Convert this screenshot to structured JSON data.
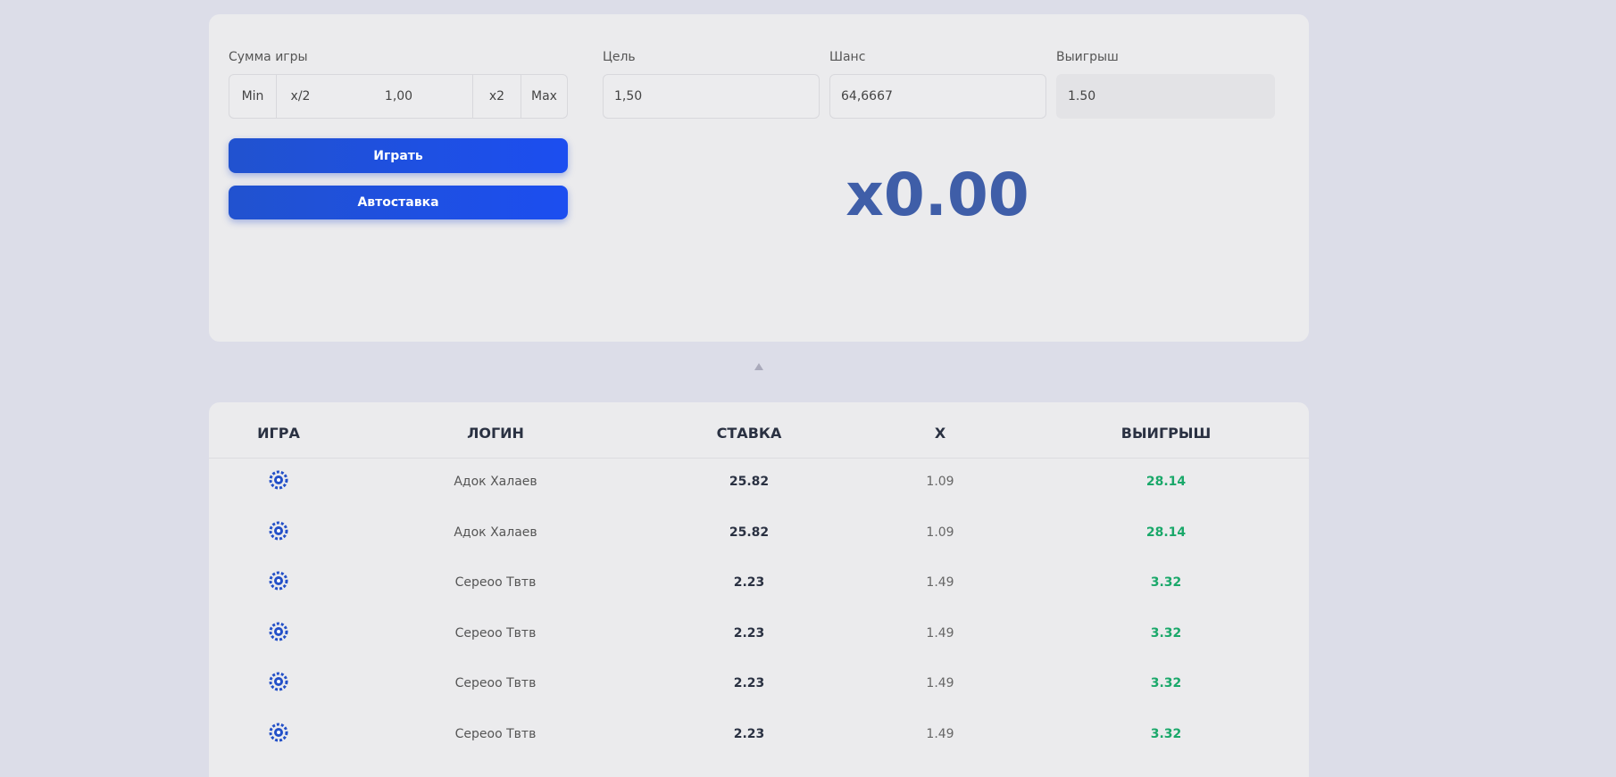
{
  "form": {
    "bet_label": "Сумма игры",
    "bet_buttons": [
      "Min",
      "x/2",
      "x2",
      "Max"
    ],
    "bet_value": "1,00",
    "target_label": "Цель",
    "target_value": "1,50",
    "chance_label": "Шанс",
    "chance_value": "64,6667",
    "payout_label": "Выигрыш",
    "payout_value": "1.50",
    "play_button": "Играть",
    "auto_button": "Автоставка",
    "multiplier": "x0.00"
  },
  "table": {
    "headers": [
      "ИГРА",
      "ЛОГИН",
      "СТАВКА",
      "X",
      "ВЫИГРЫШ"
    ],
    "rows": [
      [
        "Адок Халаев",
        "25.82",
        "1.09",
        "28.14"
      ],
      [
        "Адок Халаев",
        "25.82",
        "1.09",
        "28.14"
      ],
      [
        "Сереоо Твтв",
        "2.23",
        "1.49",
        "3.32"
      ],
      [
        "Сереоо Твтв",
        "2.23",
        "1.49",
        "3.32"
      ],
      [
        "Сереоо Твтв",
        "2.23",
        "1.49",
        "3.32"
      ],
      [
        "Сереоо Твтв",
        "2.23",
        "1.49",
        "3.32"
      ]
    ]
  }
}
